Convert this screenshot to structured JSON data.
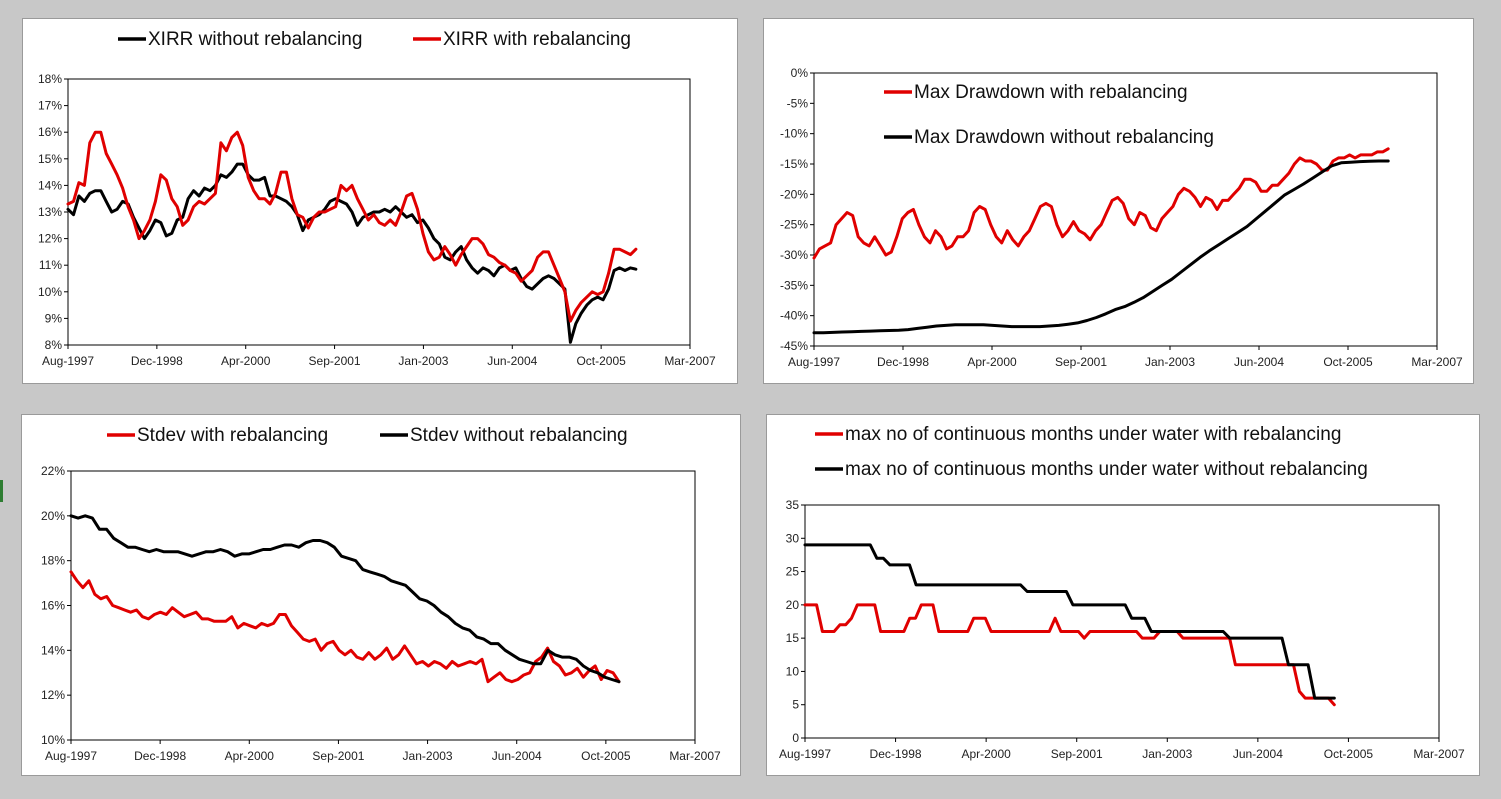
{
  "colors": {
    "red": "#e00000",
    "black": "#000000"
  },
  "charts": [
    {
      "id": "xirr",
      "type": "line",
      "legend": [
        "XIRR without rebalancing",
        "XIRR with rebalancing"
      ],
      "x_ticks": [
        "Aug-1997",
        "Dec-1998",
        "Apr-2000",
        "Sep-2001",
        "Jan-2003",
        "Jun-2004",
        "Oct-2005",
        "Mar-2007"
      ],
      "y_ticks": [
        "8%",
        "9%",
        "10%",
        "11%",
        "12%",
        "13%",
        "14%",
        "15%",
        "16%",
        "17%",
        "18%"
      ],
      "ylim": [
        8,
        18
      ],
      "series": [
        {
          "name": "XIRR without rebalancing",
          "color": "black",
          "values": [
            13.1,
            12.9,
            13.6,
            13.4,
            13.7,
            13.8,
            13.8,
            13.4,
            13.0,
            13.1,
            13.4,
            13.3,
            12.8,
            12.4,
            12.0,
            12.3,
            12.7,
            12.6,
            12.1,
            12.2,
            12.7,
            12.8,
            13.5,
            13.8,
            13.6,
            13.9,
            13.8,
            14.0,
            14.4,
            14.3,
            14.5,
            14.8,
            14.8,
            14.4,
            14.2,
            14.2,
            14.3,
            13.6,
            13.6,
            13.5,
            13.4,
            13.2,
            12.9,
            12.3,
            12.7,
            12.8,
            12.9,
            13.1,
            13.4,
            13.5,
            13.4,
            13.3,
            13.0,
            12.5,
            12.8,
            12.9,
            13.0,
            13.0,
            13.1,
            13.0,
            13.2,
            13.0,
            12.8,
            12.9,
            12.6,
            12.7,
            12.4,
            12.0,
            11.8,
            11.3,
            11.2,
            11.5,
            11.7,
            11.2,
            10.9,
            10.7,
            10.9,
            10.8,
            10.6,
            10.9,
            11.0,
            10.8,
            10.9,
            10.5,
            10.2,
            10.1,
            10.3,
            10.5,
            10.6,
            10.5,
            10.3,
            10.1,
            8.1,
            8.8,
            9.2,
            9.5,
            9.7,
            9.8,
            9.7,
            10.1,
            10.8,
            10.9,
            10.8,
            10.9,
            10.85
          ]
        },
        {
          "name": "XIRR with rebalancing",
          "color": "red",
          "values": [
            13.3,
            13.4,
            14.1,
            14.0,
            15.6,
            16.0,
            16.0,
            15.2,
            14.8,
            14.4,
            13.9,
            13.2,
            12.7,
            12.0,
            12.3,
            12.7,
            13.4,
            14.4,
            14.2,
            13.5,
            13.2,
            12.5,
            12.7,
            13.2,
            13.4,
            13.3,
            13.5,
            13.7,
            15.6,
            15.3,
            15.8,
            16.0,
            15.5,
            14.3,
            13.8,
            13.5,
            13.5,
            13.3,
            13.7,
            14.5,
            14.5,
            13.5,
            12.9,
            12.8,
            12.4,
            12.8,
            13.0,
            13.0,
            13.1,
            13.2,
            14.0,
            13.8,
            14.0,
            13.5,
            13.1,
            12.7,
            12.9,
            12.6,
            12.5,
            12.7,
            12.5,
            13.0,
            13.6,
            13.7,
            13.1,
            12.2,
            11.5,
            11.2,
            11.3,
            11.7,
            11.4,
            11.0,
            11.4,
            11.7,
            12.0,
            12.0,
            11.8,
            11.4,
            11.3,
            11.1,
            11.0,
            10.8,
            10.7,
            10.4,
            10.6,
            10.8,
            11.3,
            11.5,
            11.5,
            11.0,
            10.5,
            10.0,
            8.9,
            9.3,
            9.6,
            9.8,
            10.0,
            9.9,
            10.0,
            10.7,
            11.6,
            11.6,
            11.5,
            11.4,
            11.6
          ]
        }
      ]
    },
    {
      "id": "drawdown",
      "type": "line",
      "legend": [
        "Max Drawdown with rebalancing",
        "Max Drawdown without rebalancing"
      ],
      "x_ticks": [
        "Aug-1997",
        "Dec-1998",
        "Apr-2000",
        "Sep-2001",
        "Jan-2003",
        "Jun-2004",
        "Oct-2005",
        "Mar-2007"
      ],
      "y_ticks": [
        "-45%",
        "-40%",
        "-35%",
        "-30%",
        "-25%",
        "-20%",
        "-15%",
        "-10%",
        "-5%",
        "0%"
      ],
      "ylim": [
        -45,
        0
      ],
      "series": [
        {
          "name": "Max Drawdown with rebalancing",
          "color": "red",
          "values": [
            -30.5,
            -29,
            -28.5,
            -28,
            -25,
            -24,
            -23,
            -23.5,
            -27,
            -28,
            -28.5,
            -27,
            -28.5,
            -30,
            -29.5,
            -27,
            -24,
            -23,
            -22.5,
            -25,
            -27,
            -28,
            -26,
            -27,
            -29,
            -28.5,
            -27,
            -27,
            -26,
            -23,
            -22,
            -22.5,
            -25,
            -27,
            -28,
            -26,
            -27.5,
            -28.5,
            -27,
            -26,
            -24,
            -22,
            -21.5,
            -22,
            -25,
            -27,
            -26,
            -24.5,
            -26,
            -26.5,
            -27.5,
            -26,
            -25,
            -23,
            -21,
            -20.5,
            -21.5,
            -24,
            -25,
            -23,
            -23.5,
            -25.5,
            -26,
            -24,
            -23,
            -22,
            -20,
            -19,
            -19.5,
            -20.5,
            -22,
            -20.5,
            -21,
            -22.5,
            -21,
            -21,
            -20,
            -19,
            -17.5,
            -17.5,
            -18,
            -19.5,
            -19.5,
            -18.5,
            -18.5,
            -17.5,
            -16.5,
            -15,
            -14,
            -14.5,
            -14.5,
            -15,
            -16,
            -16,
            -14.5,
            -14,
            -14,
            -13.5,
            -14,
            -13.5,
            -13.5,
            -13.5,
            -13,
            -13,
            -12.5
          ]
        },
        {
          "name": "Max Drawdown without rebalancing",
          "color": "black",
          "values": [
            -42.8,
            -42.8,
            -42.75,
            -42.7,
            -42.65,
            -42.6,
            -42.55,
            -42.5,
            -42.45,
            -42.4,
            -42.3,
            -42.1,
            -41.9,
            -41.7,
            -41.6,
            -41.5,
            -41.5,
            -41.5,
            -41.5,
            -41.6,
            -41.7,
            -41.8,
            -41.8,
            -41.8,
            -41.8,
            -41.7,
            -41.6,
            -41.4,
            -41.2,
            -40.8,
            -40.3,
            -39.7,
            -39.0,
            -38.5,
            -37.8,
            -37.0,
            -36.0,
            -35.0,
            -34.0,
            -32.8,
            -31.6,
            -30.4,
            -29.3,
            -28.3,
            -27.3,
            -26.3,
            -25.3,
            -24.0,
            -22.7,
            -21.4,
            -20.1,
            -19.2,
            -18.3,
            -17.3,
            -16.3,
            -15.3,
            -14.8,
            -14.7,
            -14.6,
            -14.55,
            -14.5,
            -14.5
          ]
        }
      ]
    },
    {
      "id": "stdev",
      "type": "line",
      "legend": [
        "Stdev with rebalancing",
        "Stdev without rebalancing"
      ],
      "x_ticks": [
        "Aug-1997",
        "Dec-1998",
        "Apr-2000",
        "Sep-2001",
        "Jan-2003",
        "Jun-2004",
        "Oct-2005",
        "Mar-2007"
      ],
      "y_ticks": [
        "10%",
        "12%",
        "14%",
        "16%",
        "18%",
        "20%",
        "22%"
      ],
      "ylim": [
        10,
        22
      ],
      "series": [
        {
          "name": "Stdev with rebalancing",
          "color": "red",
          "values": [
            17.5,
            17.1,
            16.8,
            17.1,
            16.5,
            16.3,
            16.4,
            16.0,
            15.9,
            15.8,
            15.7,
            15.8,
            15.5,
            15.4,
            15.6,
            15.7,
            15.6,
            15.9,
            15.7,
            15.5,
            15.6,
            15.7,
            15.4,
            15.4,
            15.3,
            15.3,
            15.3,
            15.5,
            15.0,
            15.2,
            15.1,
            15.0,
            15.2,
            15.1,
            15.2,
            15.6,
            15.6,
            15.1,
            14.8,
            14.5,
            14.4,
            14.5,
            14.0,
            14.3,
            14.4,
            14.0,
            13.8,
            14.0,
            13.7,
            13.6,
            13.9,
            13.6,
            13.8,
            14.1,
            13.6,
            13.8,
            14.2,
            13.8,
            13.4,
            13.5,
            13.3,
            13.5,
            13.4,
            13.2,
            13.5,
            13.3,
            13.4,
            13.5,
            13.4,
            13.6,
            12.6,
            12.8,
            13.0,
            12.7,
            12.6,
            12.7,
            12.9,
            13.0,
            13.5,
            13.7,
            14.1,
            13.5,
            13.3,
            12.9,
            13.0,
            13.2,
            12.8,
            13.1,
            13.3,
            12.7,
            13.1,
            13.0,
            12.6
          ]
        },
        {
          "name": "Stdev without rebalancing",
          "color": "black",
          "values": [
            20.0,
            19.9,
            20.0,
            19.9,
            19.4,
            19.4,
            19.0,
            18.8,
            18.6,
            18.6,
            18.5,
            18.4,
            18.5,
            18.4,
            18.4,
            18.4,
            18.3,
            18.2,
            18.3,
            18.4,
            18.4,
            18.5,
            18.4,
            18.2,
            18.3,
            18.3,
            18.4,
            18.5,
            18.5,
            18.6,
            18.7,
            18.7,
            18.6,
            18.8,
            18.9,
            18.9,
            18.8,
            18.6,
            18.2,
            18.1,
            18.0,
            17.6,
            17.5,
            17.4,
            17.3,
            17.1,
            17.0,
            16.9,
            16.6,
            16.3,
            16.2,
            16.0,
            15.7,
            15.5,
            15.2,
            15.0,
            14.9,
            14.6,
            14.5,
            14.3,
            14.3,
            14.0,
            13.8,
            13.6,
            13.5,
            13.4,
            13.4,
            14.0,
            13.8,
            13.7,
            13.7,
            13.6,
            13.3,
            13.1,
            13.0,
            12.8,
            12.7,
            12.6
          ]
        }
      ]
    },
    {
      "id": "underwater",
      "type": "line",
      "legend": [
        "max no of continuous months under water with rebalancing",
        "max no of continuous months under water without rebalancing"
      ],
      "x_ticks": [
        "Aug-1997",
        "Dec-1998",
        "Apr-2000",
        "Sep-2001",
        "Jan-2003",
        "Jun-2004",
        "Oct-2005",
        "Mar-2007"
      ],
      "y_ticks": [
        "0",
        "5",
        "10",
        "15",
        "20",
        "25",
        "30",
        "35"
      ],
      "ylim": [
        0,
        35
      ],
      "series": [
        {
          "name": "max no of continuous months under water with rebalancing",
          "color": "red",
          "values": [
            20,
            20,
            20,
            16,
            16,
            16,
            17,
            17,
            18,
            20,
            20,
            20,
            20,
            16,
            16,
            16,
            16,
            16,
            18,
            18,
            20,
            20,
            20,
            16,
            16,
            16,
            16,
            16,
            16,
            18,
            18,
            18,
            16,
            16,
            16,
            16,
            16,
            16,
            16,
            16,
            16,
            16,
            16,
            18,
            16,
            16,
            16,
            16,
            15,
            16,
            16,
            16,
            16,
            16,
            16,
            16,
            16,
            16,
            15,
            15,
            15,
            16,
            16,
            16,
            16,
            15,
            15,
            15,
            15,
            15,
            15,
            15,
            15,
            15,
            11,
            11,
            11,
            11,
            11,
            11,
            11,
            11,
            11,
            11,
            11,
            7,
            6,
            6,
            6,
            6,
            6,
            5
          ]
        },
        {
          "name": "max no of continuous months under water without rebalancing",
          "color": "black",
          "values": [
            29,
            29,
            29,
            29,
            29,
            29,
            29,
            29,
            29,
            29,
            29,
            27,
            27,
            26,
            26,
            26,
            26,
            23,
            23,
            23,
            23,
            23,
            23,
            23,
            23,
            23,
            23,
            23,
            23,
            23,
            23,
            23,
            23,
            23,
            22,
            22,
            22,
            22,
            22,
            22,
            22,
            20,
            20,
            20,
            20,
            20,
            20,
            20,
            20,
            20,
            18,
            18,
            18,
            16,
            16,
            16,
            16,
            16,
            16,
            16,
            16,
            16,
            16,
            16,
            16,
            15,
            15,
            15,
            15,
            15,
            15,
            15,
            15,
            15,
            11,
            11,
            11,
            11,
            6,
            6,
            6,
            6
          ]
        }
      ]
    }
  ]
}
